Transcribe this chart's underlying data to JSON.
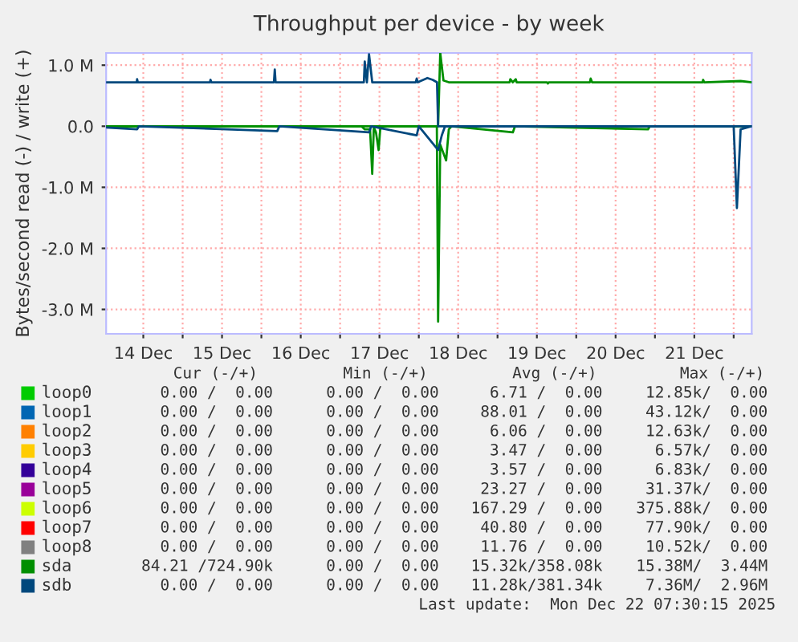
{
  "chart_data": {
    "type": "line",
    "title": "Throughput per device - by week",
    "ylabel": "Bytes/second read (-) / write (+)",
    "xlim": [
      "2025-12-14T00:40",
      "2025-12-22T05:30"
    ],
    "xticks": [
      {
        "value": "2025-12-14T12:00",
        "label": "14 Dec"
      },
      {
        "value": "2025-12-15T12:00",
        "label": "15 Dec"
      },
      {
        "value": "2025-12-16T12:00",
        "label": "16 Dec"
      },
      {
        "value": "2025-12-17T12:00",
        "label": "17 Dec"
      },
      {
        "value": "2025-12-18T12:00",
        "label": "18 Dec"
      },
      {
        "value": "2025-12-19T12:00",
        "label": "19 Dec"
      },
      {
        "value": "2025-12-20T12:00",
        "label": "20 Dec"
      },
      {
        "value": "2025-12-21T12:00",
        "label": "21 Dec"
      },
      {
        "value": "2025-12-15T00:00",
        "label": null
      },
      {
        "value": "2025-12-16T00:00",
        "label": null
      },
      {
        "value": "2025-12-17T00:00",
        "label": null
      },
      {
        "value": "2025-12-18T00:00",
        "label": null
      },
      {
        "value": "2025-12-19T00:00",
        "label": null
      },
      {
        "value": "2025-12-20T00:00",
        "label": null
      },
      {
        "value": "2025-12-21T00:00",
        "label": null
      },
      {
        "value": "2025-12-22T00:00",
        "label": null
      }
    ],
    "ylim": [
      -3.4,
      1.2
    ],
    "yticks": [
      {
        "value": 1,
        "label": "1.0 M"
      },
      {
        "value": 0,
        "label": "0.0"
      },
      {
        "value": -1,
        "label": "-1.0 M"
      },
      {
        "value": -2,
        "label": "-2.0 M"
      },
      {
        "value": -3,
        "label": "-3.0 M"
      }
    ],
    "grid": true,
    "legend": "bottom",
    "marker": "none",
    "line_style": "solid",
    "series": [
      {
        "name": "loop0",
        "color": "#00cc00"
      },
      {
        "name": "loop1",
        "color": "#0066b3"
      },
      {
        "name": "loop2",
        "color": "#ff8000"
      },
      {
        "name": "loop3",
        "color": "#ffcc00"
      },
      {
        "name": "loop4",
        "color": "#330099"
      },
      {
        "name": "loop5",
        "color": "#990099"
      },
      {
        "name": "loop6",
        "color": "#ccff00"
      },
      {
        "name": "loop7",
        "color": "#ff0000"
      },
      {
        "name": "loop8",
        "color": "#808080"
      },
      {
        "name": "sda",
        "color": "#008f00",
        "x": [
          "2025-12-14T00:40",
          "2025-12-18T05:53",
          "2025-12-18T06:32",
          "2025-12-18T07:31",
          "2025-12-18T09:09",
          "2025-12-19T03:40",
          "2025-12-19T03:55",
          "2025-12-19T04:40",
          "2025-12-19T05:33",
          "2025-12-19T05:50",
          "2025-12-19T15:05",
          "2025-12-19T15:20",
          "2025-12-19T15:40",
          "2025-12-20T04:10",
          "2025-12-20T04:24",
          "2025-12-20T04:50",
          "2025-12-21T14:30",
          "2025-12-21T14:42",
          "2025-12-21T15:00",
          "2025-12-22T02:07",
          "2025-12-22T05:30"
        ],
        "values": [
          0,
          0,
          1.2,
          0.75,
          0.72,
          0.72,
          0.77,
          0.72,
          0.77,
          0.72,
          0.72,
          0.7,
          0.72,
          0.72,
          0.78,
          0.72,
          0.72,
          0.76,
          0.72,
          0.74,
          0.72
        ]
      },
      {
        "color": "#008f00",
        "x": [
          "2025-12-14T00:40",
          "2025-12-17T06:30",
          "2025-12-17T07:31",
          "2025-12-17T09:08",
          "2025-12-17T09:48",
          "2025-12-17T10:17",
          "2025-12-17T10:56",
          "2025-12-17T11:45",
          "2025-12-17T12:14",
          "2025-12-17T13:00",
          "2025-12-18T05:30",
          "2025-12-18T05:53",
          "2025-12-18T06:32",
          "2025-12-18T08:20",
          "2025-12-18T09:09",
          "2025-12-18T10:00",
          "2025-12-19T04:40",
          "2025-12-19T05:20",
          "2025-12-20T21:52",
          "2025-12-20T22:30",
          "2025-12-22T05:30"
        ],
        "values": [
          0,
          0,
          -0.05,
          -0.05,
          -0.78,
          -0.02,
          -0.1,
          -0.39,
          -0.05,
          0,
          0,
          -3.2,
          -0.3,
          -0.56,
          -0.05,
          0,
          -0.1,
          0,
          -0.05,
          0,
          0
        ]
      },
      {
        "name": "sdb",
        "color": "#00487d",
        "x": [
          "2025-12-14T00:40",
          "2025-12-14T10:00",
          "2025-12-14T10:07",
          "2025-12-14T10:20",
          "2025-12-15T08:20",
          "2025-12-15T08:29",
          "2025-12-15T08:45",
          "2025-12-16T03:50",
          "2025-12-16T04:05",
          "2025-12-16T04:20",
          "2025-12-17T07:15",
          "2025-12-17T07:31",
          "2025-12-17T08:10",
          "2025-12-17T08:49",
          "2025-12-17T09:48",
          "2025-12-17T23:05",
          "2025-12-17T23:21",
          "2025-12-17T23:40",
          "2025-12-18T02:37",
          "2025-12-18T04:14",
          "2025-12-18T05:33",
          "2025-12-18T05:53",
          "2025-12-22T05:30"
        ],
        "values": [
          0.72,
          0.72,
          0.77,
          0.72,
          0.72,
          0.76,
          0.72,
          0.72,
          0.93,
          0.72,
          0.72,
          1.06,
          0.72,
          1.18,
          0.72,
          0.72,
          0.78,
          0.72,
          0.79,
          0.76,
          0.72,
          0,
          0
        ]
      },
      {
        "color": "#00487d",
        "x": [
          "2025-12-14T00:40",
          "2025-12-14T10:07",
          "2025-12-14T10:40",
          "2025-12-16T04:50",
          "2025-12-16T05:30",
          "2025-12-17T08:49",
          "2025-12-17T09:30",
          "2025-12-17T23:21",
          "2025-12-18T00:00",
          "2025-12-18T05:53",
          "2025-12-18T07:00",
          "2025-12-18T08:00",
          "2025-12-22T00:00",
          "2025-12-22T00:59",
          "2025-12-22T02:07",
          "2025-12-22T05:30"
        ],
        "values": [
          -0.02,
          -0.05,
          0,
          -0.08,
          0,
          -0.1,
          0,
          -0.15,
          0,
          -0.39,
          -0.15,
          0,
          0,
          -1.34,
          -0.05,
          0
        ]
      }
    ],
    "annotations": [
      "Cur (-/+)",
      "Min (-/+)",
      "Avg (-/+)",
      "Max (-/+)",
      "0.00 /  0.00",
      "0.00 /  0.00",
      "6.71 /  0.00",
      "12.85k/  0.00",
      "0.00 /  0.00",
      "0.00 /  0.00",
      "88.01 /  0.00",
      "43.12k/  0.00",
      "0.00 /  0.00",
      "0.00 /  0.00",
      "6.06 /  0.00",
      "12.63k/  0.00",
      "0.00 /  0.00",
      "0.00 /  0.00",
      "3.47 /  0.00",
      "6.57k/  0.00",
      "0.00 /  0.00",
      "0.00 /  0.00",
      "3.57 /  0.00",
      "6.83k/  0.00",
      "0.00 /  0.00",
      "0.00 /  0.00",
      "23.27 /  0.00",
      "31.37k/  0.00",
      "0.00 /  0.00",
      "0.00 /  0.00",
      "167.29 /  0.00",
      "375.88k/  0.00",
      "0.00 /  0.00",
      "0.00 /  0.00",
      "40.80 /  0.00",
      "77.90k/  0.00",
      "0.00 /  0.00",
      "0.00 /  0.00",
      "11.76 /  0.00",
      "10.52k/  0.00",
      "84.21 /724.90k",
      "0.00 /  0.00",
      "15.32k/358.08k",
      "15.38M/  3.44M",
      "0.00 /  0.00",
      "0.00 /  0.00",
      "11.28k/381.34k",
      "7.36M/  2.96M",
      "Last update:  Mon Dec 22 07:30:15 2025"
    ]
  }
}
